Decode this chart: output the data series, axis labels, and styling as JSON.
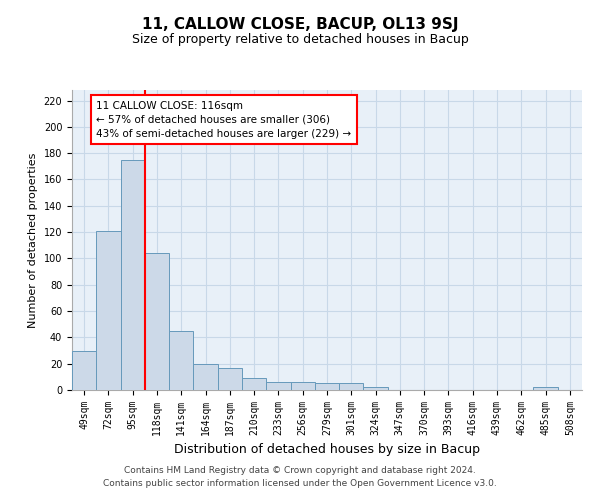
{
  "title": "11, CALLOW CLOSE, BACUP, OL13 9SJ",
  "subtitle": "Size of property relative to detached houses in Bacup",
  "xlabel": "Distribution of detached houses by size in Bacup",
  "ylabel": "Number of detached properties",
  "bar_labels": [
    "49sqm",
    "72sqm",
    "95sqm",
    "118sqm",
    "141sqm",
    "164sqm",
    "187sqm",
    "210sqm",
    "233sqm",
    "256sqm",
    "279sqm",
    "301sqm",
    "324sqm",
    "347sqm",
    "370sqm",
    "393sqm",
    "416sqm",
    "439sqm",
    "462sqm",
    "485sqm",
    "508sqm"
  ],
  "bar_values": [
    30,
    121,
    175,
    104,
    45,
    20,
    17,
    9,
    6,
    6,
    5,
    5,
    2,
    0,
    0,
    0,
    0,
    0,
    0,
    2,
    0
  ],
  "bar_color": "#ccd9e8",
  "bar_edge_color": "#6699bb",
  "red_line_x": 2.5,
  "annotation_text": "11 CALLOW CLOSE: 116sqm\n← 57% of detached houses are smaller (306)\n43% of semi-detached houses are larger (229) →",
  "annotation_box_facecolor": "white",
  "annotation_box_edgecolor": "red",
  "ylim_max": 228,
  "yticks": [
    0,
    20,
    40,
    60,
    80,
    100,
    120,
    140,
    160,
    180,
    200,
    220
  ],
  "footnote": "Contains HM Land Registry data © Crown copyright and database right 2024.\nContains public sector information licensed under the Open Government Licence v3.0.",
  "grid_color": "#c8d8e8",
  "bg_color": "#e8f0f8",
  "title_fontsize": 11,
  "subtitle_fontsize": 9,
  "ylabel_fontsize": 8,
  "xlabel_fontsize": 9,
  "tick_fontsize": 7,
  "annot_fontsize": 7.5,
  "footnote_fontsize": 6.5
}
